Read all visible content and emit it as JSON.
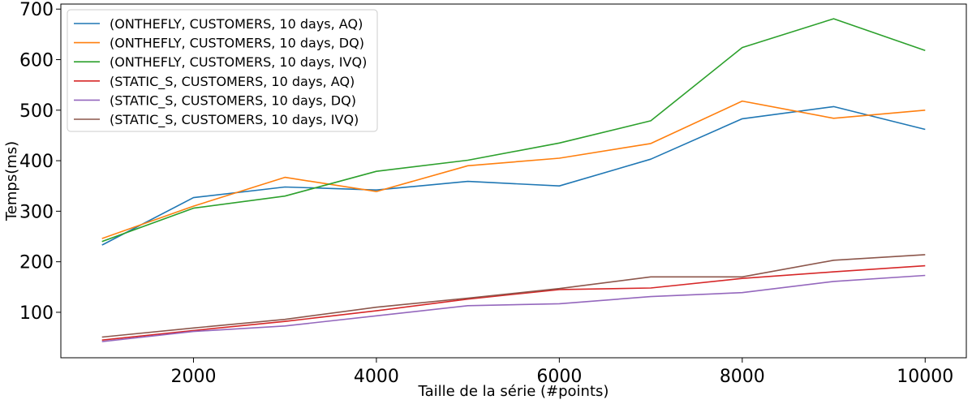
{
  "chart_data": {
    "type": "line",
    "title": "",
    "xlabel": "Taille de la série (#points)",
    "ylabel": "Temps(ms)",
    "xlim": [
      550,
      10450
    ],
    "ylim": [
      10,
      710
    ],
    "grid": false,
    "legend_position": "top-left",
    "x": [
      1000,
      2000,
      3000,
      4000,
      5000,
      6000,
      7000,
      8000,
      9000,
      10000
    ],
    "x_ticks": [
      2000,
      4000,
      6000,
      8000,
      10000
    ],
    "y_ticks": [
      100,
      200,
      300,
      400,
      500,
      600,
      700
    ],
    "series": [
      {
        "name": "(ONTHEFLY, CUSTOMERS, 10 days, AQ)",
        "color": "#1f77b4",
        "values": [
          233,
          327,
          348,
          342,
          359,
          350,
          403,
          483,
          507,
          462
        ]
      },
      {
        "name": "(ONTHEFLY, CUSTOMERS, 10 days, DQ)",
        "color": "#ff7f0e",
        "values": [
          246,
          310,
          367,
          339,
          390,
          405,
          434,
          518,
          484,
          500
        ]
      },
      {
        "name": "(ONTHEFLY, CUSTOMERS, 10 days, IVQ)",
        "color": "#2ca02c",
        "values": [
          240,
          306,
          330,
          379,
          401,
          435,
          479,
          624,
          681,
          618
        ]
      },
      {
        "name": "(STATIC_S, CUSTOMERS, 10 days, AQ)",
        "color": "#d62728",
        "values": [
          45,
          64,
          82,
          103,
          126,
          145,
          148,
          167,
          180,
          192
        ]
      },
      {
        "name": "(STATIC_S, CUSTOMERS, 10 days, DQ)",
        "color": "#9467bd",
        "values": [
          42,
          62,
          73,
          93,
          113,
          117,
          131,
          139,
          161,
          173
        ]
      },
      {
        "name": "(STATIC_S, CUSTOMERS, 10 days, IVQ)",
        "color": "#8c564b",
        "values": [
          51,
          69,
          86,
          110,
          128,
          147,
          170,
          170,
          203,
          214
        ]
      }
    ]
  }
}
